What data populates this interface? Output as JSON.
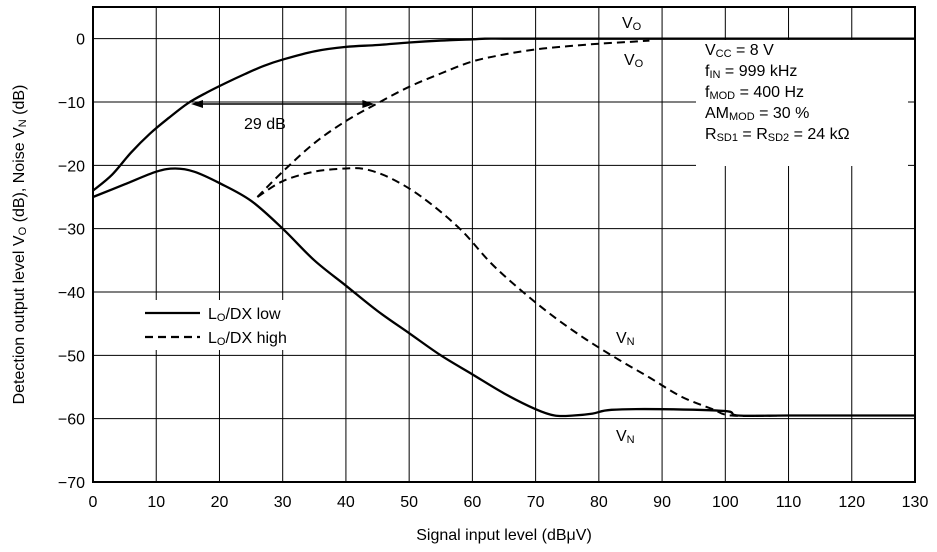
{
  "chart_data": {
    "type": "line",
    "xlabel_parts": [
      "Signal input level (dB",
      "μ",
      "V)"
    ],
    "ylabel_parts": [
      {
        "t": "Detection output level V"
      },
      {
        "t": "O",
        "sub": true
      },
      {
        "t": " (dB), Noise V"
      },
      {
        "t": "N",
        "sub": true
      },
      {
        "t": " (dB)"
      }
    ],
    "xlim": [
      0,
      130
    ],
    "ylim": [
      -70,
      5
    ],
    "xticks": [
      "0",
      "10",
      "20",
      "30",
      "40",
      "50",
      "60",
      "70",
      "80",
      "90",
      "100",
      "110",
      "120",
      "130"
    ],
    "yticks": [
      "0",
      "−10",
      "−20",
      "−30",
      "−40",
      "−50",
      "−60",
      "−70"
    ],
    "grid": true,
    "legend_position": "center-left",
    "series": [
      {
        "name": "LO/DX low",
        "legend_parts": [
          {
            "t": "L"
          },
          {
            "t": "O",
            "sub": true
          },
          {
            "t": "/DX low"
          }
        ],
        "style": "solid",
        "kind": "output",
        "x": [
          0,
          3,
          6,
          9,
          12,
          15,
          18,
          21,
          24,
          27,
          30,
          35,
          40,
          45,
          50,
          55,
          60,
          62,
          65,
          70,
          80,
          90,
          100,
          110,
          120,
          130
        ],
        "y": [
          -24,
          -21.5,
          -18,
          -15,
          -12.5,
          -10.2,
          -8.5,
          -7,
          -5.6,
          -4.3,
          -3.3,
          -2,
          -1.3,
          -1,
          -0.6,
          -0.3,
          -0.1,
          0,
          0,
          0,
          0,
          0,
          0,
          0,
          0,
          0
        ]
      },
      {
        "name": "LO/DX high",
        "legend_parts": [
          {
            "t": "L"
          },
          {
            "t": "O",
            "sub": true
          },
          {
            "t": "/DX high"
          }
        ],
        "style": "dashed",
        "kind": "output",
        "x": [
          26,
          30,
          35,
          40,
          45,
          50,
          55,
          60,
          65,
          70,
          75,
          80,
          85,
          88
        ],
        "y": [
          -25,
          -21,
          -16.5,
          -13,
          -10.2,
          -7.6,
          -5.5,
          -3.6,
          -2.5,
          -1.7,
          -1.2,
          -0.8,
          -0.5,
          -0.3
        ]
      },
      {
        "name": "LO/DX low noise",
        "style": "solid",
        "kind": "noise",
        "x": [
          0,
          5,
          10,
          13,
          16,
          20,
          25,
          30,
          35,
          40,
          45,
          50,
          55,
          60,
          65,
          70,
          73,
          76,
          79,
          82,
          90,
          100,
          102,
          110,
          120,
          130
        ],
        "y": [
          -25,
          -23,
          -21,
          -20.5,
          -21,
          -22.8,
          -25.6,
          -30,
          -35,
          -39,
          -43,
          -46.5,
          -50,
          -53,
          -56,
          -58.5,
          -59.5,
          -59.5,
          -59.2,
          -58.6,
          -58.5,
          -58.8,
          -59.5,
          -59.5,
          -59.5,
          -59.5
        ]
      },
      {
        "name": "LO/DX high noise",
        "style": "dashed",
        "kind": "noise",
        "x": [
          26,
          30,
          35,
          40,
          43,
          47,
          52,
          58,
          63,
          68,
          73,
          78,
          83,
          88,
          93,
          98,
          101,
          110,
          120,
          130
        ],
        "y": [
          -25,
          -22.5,
          -21,
          -20.5,
          -20.6,
          -22,
          -25,
          -30,
          -35.5,
          -40,
          -44,
          -47.5,
          -50.6,
          -53.5,
          -56.5,
          -58.5,
          -59.5,
          -59.5,
          -59.5,
          -59.5
        ]
      }
    ],
    "annotations": {
      "vo_top": [
        {
          "t": "V"
        },
        {
          "t": "O",
          "sub": true
        }
      ],
      "vo_bottom": [
        {
          "t": "V"
        },
        {
          "t": "O",
          "sub": true
        }
      ],
      "vn_mid": [
        {
          "t": "V"
        },
        {
          "t": "N",
          "sub": true
        }
      ],
      "vn_bottom": [
        {
          "t": "V"
        },
        {
          "t": "N",
          "sub": true
        }
      ],
      "delta_label": "29 dB",
      "delta_arrow": {
        "from_x": 15.5,
        "to_x": 44.5,
        "y": -10
      },
      "conditions": [
        [
          {
            "t": "V"
          },
          {
            "t": "CC",
            "sub": true
          },
          {
            "t": " = 8 V"
          }
        ],
        [
          {
            "t": "f"
          },
          {
            "t": "IN",
            "sub": true
          },
          {
            "t": " = 999 kHz"
          }
        ],
        [
          {
            "t": "f"
          },
          {
            "t": "MOD",
            "sub": true
          },
          {
            "t": " = 400 Hz"
          }
        ],
        [
          {
            "t": "AM"
          },
          {
            "t": "MOD",
            "sub": true
          },
          {
            "t": " = 30 %"
          }
        ],
        [
          {
            "t": "R"
          },
          {
            "t": "SD1",
            "sub": true
          },
          {
            "t": " = R"
          },
          {
            "t": "SD2",
            "sub": true
          },
          {
            "t": " = 24 kΩ"
          }
        ]
      ]
    }
  }
}
